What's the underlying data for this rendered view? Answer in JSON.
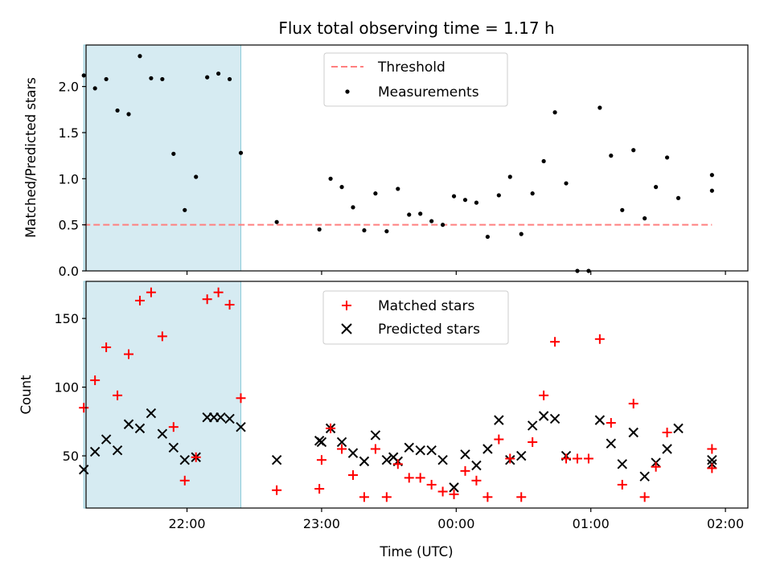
{
  "chart_data": [
    {
      "type": "scatter",
      "title": "Flux total observing time = 1.17 h",
      "xlabel": "",
      "ylabel": "Matched/Predicted stars",
      "xlim": [
        "21:15",
        "02:10"
      ],
      "ylim": [
        0,
        2.45
      ],
      "yticks": [
        "0.0",
        "0.5",
        "1.0",
        "1.5",
        "2.0"
      ],
      "shaded_span": [
        "21:14",
        "22:24"
      ],
      "threshold": {
        "label": "Threshold",
        "value": 0.5,
        "x": [
          "21:14",
          "01:54"
        ],
        "color": "#ff7f7f"
      },
      "legend_position": "upper center",
      "series": [
        {
          "name": "Measurements",
          "color": "#000000",
          "x": [
            "21:14",
            "21:19",
            "21:24",
            "21:29",
            "21:34",
            "21:39",
            "21:44",
            "21:49",
            "21:54",
            "21:59",
            "22:04",
            "22:09",
            "22:14",
            "22:19",
            "22:24",
            "22:40",
            "22:59",
            "23:04",
            "23:09",
            "23:14",
            "23:19",
            "23:24",
            "23:29",
            "23:34",
            "23:39",
            "23:44",
            "23:49",
            "23:54",
            "23:59",
            "24:04",
            "24:09",
            "24:14",
            "24:19",
            "24:24",
            "24:29",
            "24:34",
            "24:39",
            "24:44",
            "24:49",
            "24:54",
            "24:59",
            "25:04",
            "25:09",
            "25:14",
            "25:19",
            "25:24",
            "25:29",
            "25:34",
            "25:39",
            "25:54",
            "25:54"
          ],
          "y": [
            2.12,
            1.98,
            2.08,
            1.74,
            1.7,
            2.33,
            2.09,
            2.08,
            1.27,
            0.66,
            1.02,
            2.1,
            2.14,
            2.08,
            1.28,
            0.53,
            0.45,
            1.0,
            0.91,
            0.69,
            0.44,
            0.84,
            0.43,
            0.89,
            0.61,
            0.62,
            0.54,
            0.5,
            0.81,
            0.77,
            0.74,
            0.37,
            0.82,
            1.02,
            0.4,
            0.84,
            1.19,
            1.72,
            0.95,
            0.0,
            0.0,
            1.77,
            1.25,
            0.66,
            1.31,
            0.57,
            0.91,
            1.23,
            0.79,
            1.04,
            0.87
          ]
        }
      ]
    },
    {
      "type": "scatter",
      "title": "",
      "xlabel": "Time (UTC)",
      "ylabel": "Count",
      "xlim": [
        "21:15",
        "02:10"
      ],
      "ylim": [
        12,
        177
      ],
      "yticks": [
        "50",
        "100",
        "150"
      ],
      "xticks": [
        "22:00",
        "23:00",
        "00:00",
        "01:00",
        "02:00"
      ],
      "shaded_span": [
        "21:14",
        "22:24"
      ],
      "legend_position": "upper center",
      "series": [
        {
          "name": "Matched stars",
          "marker": "plus",
          "color": "#ff0000",
          "x": [
            "21:14",
            "21:19",
            "21:24",
            "21:29",
            "21:34",
            "21:39",
            "21:44",
            "21:49",
            "21:54",
            "21:59",
            "22:04",
            "22:09",
            "22:14",
            "22:19",
            "22:24",
            "22:40",
            "22:59",
            "23:00",
            "23:04",
            "23:09",
            "23:14",
            "23:19",
            "23:24",
            "23:29",
            "23:34",
            "23:39",
            "23:44",
            "23:49",
            "23:54",
            "23:59",
            "24:04",
            "24:09",
            "24:14",
            "24:19",
            "24:24",
            "24:29",
            "24:34",
            "24:39",
            "24:44",
            "24:49",
            "24:54",
            "24:59",
            "25:04",
            "25:09",
            "25:14",
            "25:19",
            "25:24",
            "25:29",
            "25:34",
            "25:54",
            "25:54"
          ],
          "y": [
            85,
            105,
            129,
            94,
            124,
            163,
            169,
            137,
            71,
            32,
            49,
            164,
            169,
            160,
            92,
            25,
            26,
            47,
            70,
            55,
            36,
            20,
            55,
            20,
            44,
            34,
            34,
            29,
            24,
            22,
            39,
            32,
            20,
            62,
            48,
            20,
            60,
            94,
            133,
            48,
            48,
            48,
            135,
            74,
            29,
            88,
            20,
            42,
            67,
            55,
            41
          ]
        },
        {
          "name": "Predicted stars",
          "marker": "x",
          "color": "#000000",
          "x": [
            "21:14",
            "21:19",
            "21:24",
            "21:29",
            "21:34",
            "21:39",
            "21:44",
            "21:49",
            "21:54",
            "21:59",
            "22:04",
            "22:09",
            "22:12",
            "22:15",
            "22:19",
            "22:24",
            "22:40",
            "22:59",
            "23:00",
            "23:04",
            "23:09",
            "23:14",
            "23:19",
            "23:24",
            "23:29",
            "23:32",
            "23:34",
            "23:39",
            "23:44",
            "23:49",
            "23:54",
            "23:59",
            "24:04",
            "24:09",
            "24:14",
            "24:19",
            "24:24",
            "24:29",
            "24:34",
            "24:39",
            "24:44",
            "24:49",
            "25:04",
            "25:09",
            "25:14",
            "25:19",
            "25:24",
            "25:29",
            "25:34",
            "25:39",
            "25:54",
            "25:54"
          ],
          "y": [
            40,
            53,
            62,
            54,
            73,
            70,
            81,
            66,
            56,
            47,
            49,
            78,
            78,
            78,
            77,
            71,
            47,
            61,
            60,
            70,
            60,
            52,
            46,
            65,
            47,
            49,
            46,
            56,
            54,
            54,
            47,
            27,
            51,
            43,
            55,
            76,
            47,
            50,
            72,
            79,
            77,
            50,
            76,
            59,
            44,
            67,
            35,
            45,
            55,
            70,
            47,
            44
          ]
        }
      ]
    }
  ]
}
